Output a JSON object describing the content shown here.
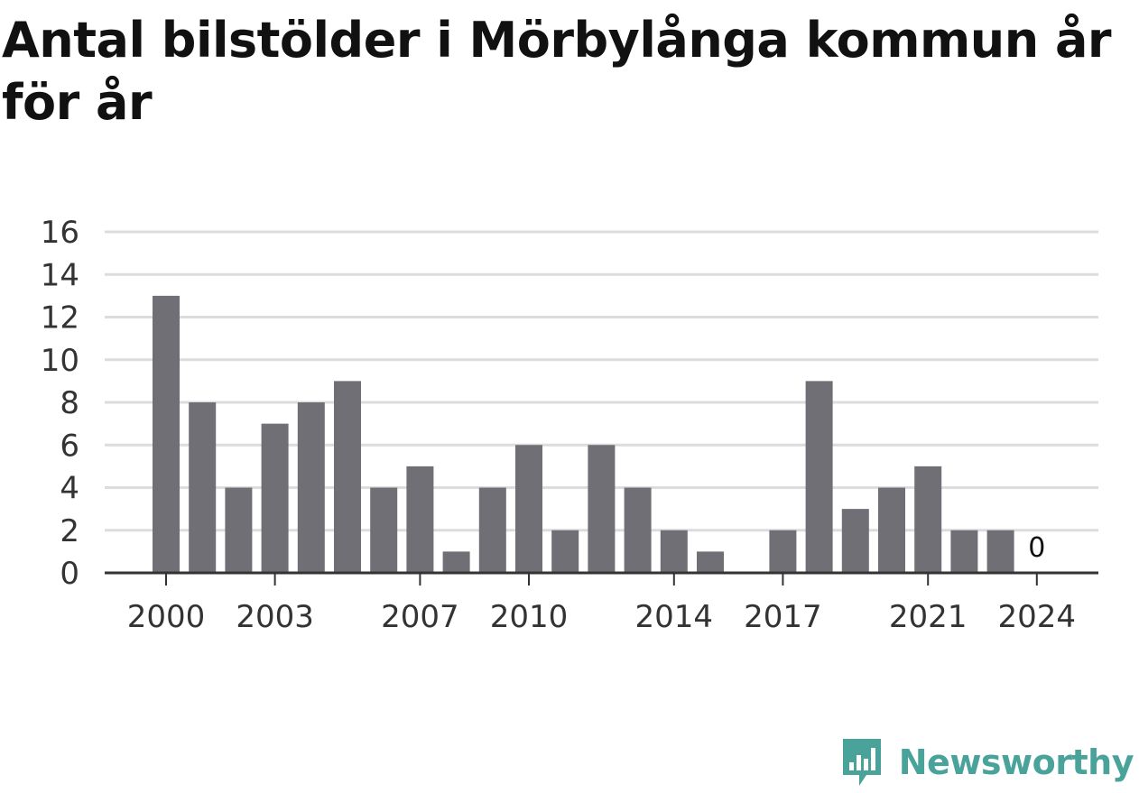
{
  "title": "Antal bilstölder i Mörbylånga kommun år för år",
  "brand": {
    "name": "Newsworthy",
    "color": "#4aa39a",
    "logo_icon": "bar-chart-speech-bubble-icon"
  },
  "colors": {
    "bar": "#706f75",
    "grid": "#dcdcdc",
    "axis": "#333333"
  },
  "chart_data": {
    "type": "bar",
    "title": "Antal bilstölder i Mörbylånga kommun år för år",
    "xlabel": "",
    "ylabel": "",
    "categories": [
      "2000",
      "2001",
      "2002",
      "2003",
      "2004",
      "2005",
      "2006",
      "2007",
      "2008",
      "2009",
      "2010",
      "2011",
      "2012",
      "2013",
      "2014",
      "2015",
      "2016",
      "2017",
      "2018",
      "2019",
      "2020",
      "2021",
      "2022",
      "2023",
      "2024"
    ],
    "values": [
      13,
      8,
      4,
      7,
      8,
      9,
      4,
      5,
      1,
      4,
      6,
      2,
      6,
      4,
      2,
      1,
      0,
      2,
      9,
      3,
      4,
      5,
      2,
      2,
      0
    ],
    "x_tick_labels": [
      "2000",
      "2003",
      "2007",
      "2010",
      "2014",
      "2017",
      "2021",
      "2024"
    ],
    "y_ticks": [
      0,
      2,
      4,
      6,
      8,
      10,
      12,
      14,
      16
    ],
    "ylim": [
      0,
      16
    ],
    "grid": true,
    "legend": "none",
    "annotations": [
      {
        "category": "2024",
        "text": "0"
      }
    ]
  }
}
